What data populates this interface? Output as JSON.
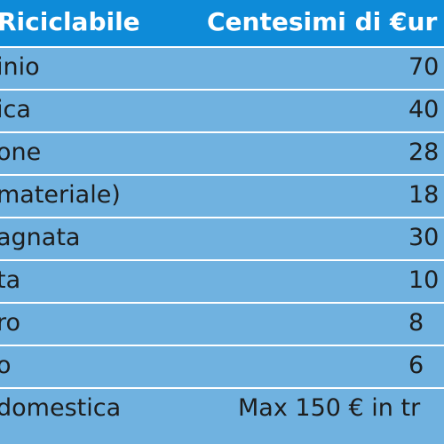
{
  "table": {
    "header": {
      "left": "Riciclabile",
      "right": "Centesimi di €ur"
    },
    "rows": [
      {
        "left": "inio",
        "right": "70"
      },
      {
        "left": "ica",
        "right": "40"
      },
      {
        "left": "one",
        "right": "28"
      },
      {
        "left": "materiale)",
        "right": "18"
      },
      {
        "left": "agnata",
        "right": "30"
      },
      {
        "left": "ta",
        "right": "10"
      },
      {
        "left": "ro",
        "right": "8"
      },
      {
        "left": "o",
        "right": "6"
      },
      {
        "left": " domestica",
        "right": "Max 150 € in tr"
      }
    ],
    "colors": {
      "header_bg": "#0e8bd8",
      "row_bg": "#70b2e0",
      "divider": "#ffffff",
      "header_text": "#ffffff",
      "row_text": "#1d1d1d"
    }
  }
}
